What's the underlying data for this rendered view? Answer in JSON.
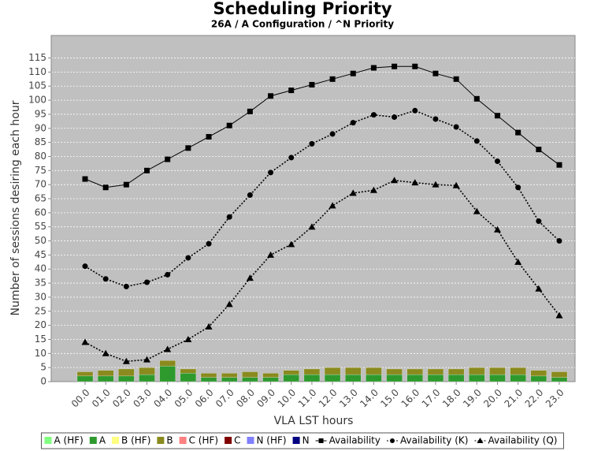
{
  "chart_data": {
    "type": "bar",
    "title": "Scheduling Priority",
    "subtitle": "26A / A Configuration / ^N Priority",
    "x_label": "VLA LST hours",
    "y_label": "Number of sessions desiring each hour",
    "categories": [
      "00.0",
      "01.0",
      "02.0",
      "03.0",
      "04.0",
      "05.0",
      "06.0",
      "07.0",
      "08.0",
      "09.0",
      "10.0",
      "11.0",
      "12.0",
      "13.0",
      "14.0",
      "15.0",
      "16.0",
      "17.0",
      "18.0",
      "19.0",
      "20.0",
      "21.0",
      "22.0",
      "23.0"
    ],
    "ylim": [
      0,
      123
    ],
    "yticks": [
      0,
      5,
      10,
      15,
      20,
      25,
      30,
      35,
      40,
      45,
      50,
      55,
      60,
      65,
      70,
      75,
      80,
      85,
      90,
      95,
      100,
      105,
      110,
      115
    ],
    "grid": true,
    "background": "#c0c0c0",
    "series": [
      {
        "name": "A (HF)",
        "type": "bar",
        "color": "#80ff80",
        "values": [
          0,
          0,
          0,
          0,
          0,
          0,
          0,
          0,
          0,
          0,
          0,
          0,
          0,
          0,
          0,
          0,
          0,
          0,
          0,
          0,
          0,
          0,
          0,
          0
        ]
      },
      {
        "name": "A",
        "type": "bar",
        "color": "#2e9a2e",
        "values": [
          2,
          2,
          2,
          2.5,
          5.5,
          3,
          1.5,
          1.5,
          1.5,
          1.5,
          2.5,
          2.5,
          2.5,
          2.5,
          2.5,
          2.5,
          2.5,
          2.5,
          2.5,
          2.5,
          2.5,
          2.5,
          2,
          1.5
        ]
      },
      {
        "name": "B (HF)",
        "type": "bar",
        "color": "#ffff80",
        "values": [
          0,
          0,
          0,
          0,
          0,
          0,
          0,
          0,
          0,
          0,
          0,
          0,
          0,
          0,
          0,
          0,
          0,
          0,
          0,
          0,
          0,
          0,
          0,
          0
        ]
      },
      {
        "name": "B",
        "type": "bar",
        "color": "#8a8a1e",
        "values": [
          1.5,
          2,
          2.5,
          2.5,
          2,
          1.5,
          1.5,
          1.5,
          2,
          1.5,
          1.5,
          2,
          2.5,
          2.5,
          2.5,
          2,
          2,
          2,
          2,
          2.5,
          2.5,
          2.5,
          2,
          2
        ]
      },
      {
        "name": "C (HF)",
        "type": "bar",
        "color": "#ff8080",
        "values": [
          0,
          0,
          0,
          0,
          0,
          0,
          0,
          0,
          0,
          0,
          0,
          0,
          0,
          0,
          0,
          0,
          0,
          0,
          0,
          0,
          0,
          0,
          0,
          0
        ]
      },
      {
        "name": "C",
        "type": "bar",
        "color": "#800000",
        "values": [
          0,
          0,
          0,
          0,
          0,
          0,
          0,
          0,
          0,
          0,
          0,
          0,
          0,
          0,
          0,
          0,
          0,
          0,
          0,
          0,
          0,
          0,
          0,
          0
        ]
      },
      {
        "name": "N (HF)",
        "type": "bar",
        "color": "#8080ff",
        "values": [
          0,
          0,
          0,
          0,
          0,
          0,
          0,
          0,
          0,
          0,
          0,
          0,
          0,
          0,
          0,
          0,
          0,
          0,
          0,
          0,
          0,
          0,
          0,
          0
        ]
      },
      {
        "name": "N",
        "type": "bar",
        "color": "#000080",
        "values": [
          0,
          0,
          0,
          0,
          0,
          0,
          0,
          0,
          0,
          0,
          0,
          0,
          0,
          0,
          0,
          0,
          0,
          0,
          0,
          0,
          0,
          0,
          0,
          0
        ]
      },
      {
        "name": "Availability",
        "type": "line",
        "color": "#000000",
        "line_style": "solid",
        "marker": "square",
        "values": [
          72,
          69,
          70,
          75,
          79,
          83,
          87,
          91,
          96,
          101.5,
          103.5,
          105.5,
          107.5,
          109.5,
          111.5,
          112,
          112,
          109.5,
          107.5,
          100.5,
          94.5,
          88.5,
          82.5,
          77
        ]
      },
      {
        "name": "Availability (K)",
        "type": "line",
        "color": "#000000",
        "line_style": "dotted",
        "marker": "circle",
        "values": [
          41,
          36.5,
          33.8,
          35.3,
          38,
          44,
          49,
          58.5,
          66.3,
          74.3,
          79.6,
          84.5,
          88,
          92,
          94.8,
          94,
          96.3,
          93.3,
          90.5,
          85.5,
          78.3,
          69,
          57,
          50
        ]
      },
      {
        "name": "Availability (Q)",
        "type": "line",
        "color": "#000000",
        "line_style": "dotted",
        "marker": "triangle",
        "values": [
          14,
          10,
          7.2,
          7.8,
          11.5,
          15,
          19.5,
          27.5,
          36.8,
          45,
          48.8,
          55,
          62.5,
          67,
          68,
          71.5,
          70.7,
          70,
          69.7,
          60.5,
          54,
          42.5,
          33,
          23.5
        ]
      }
    ]
  }
}
